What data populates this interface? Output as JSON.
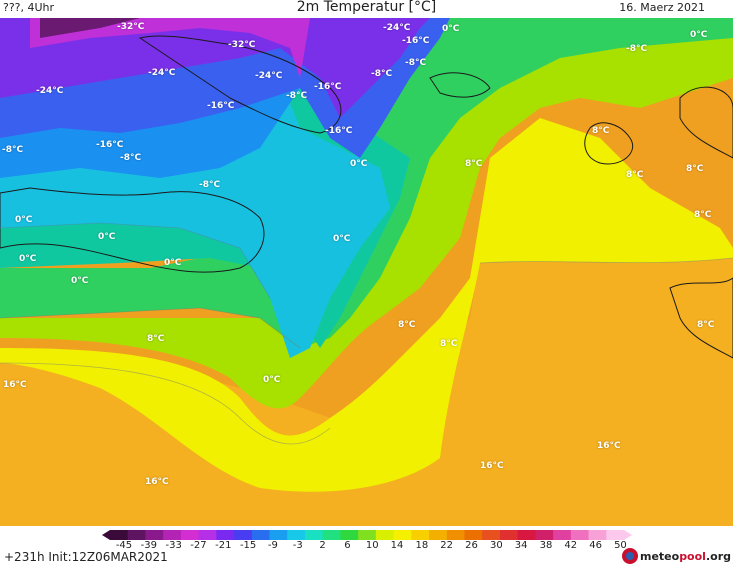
{
  "header": {
    "left": "???, 4Uhr",
    "title": "2m Temperatur [°C]",
    "date": "16. Maerz 2021"
  },
  "map_labels": [
    "-32°C",
    "-32°C",
    "-24°C",
    "-24°C",
    "-24°C",
    "-24°C",
    "-16°C",
    "-16°C",
    "-16°C",
    "-16°C",
    "-16°C",
    "-8°C",
    "-8°C",
    "-8°C",
    "-8°C",
    "-8°C",
    "-8°C",
    "-8°C",
    "0°C",
    "0°C",
    "0°C",
    "0°C",
    "0°C",
    "0°C",
    "0°C",
    "0°C",
    "0°C",
    "0°C",
    "8°C",
    "8°C",
    "8°C",
    "8°C",
    "8°C",
    "8°C",
    "8°C",
    "8°C",
    "8°C",
    "16°C",
    "16°C",
    "16°C",
    "16°C"
  ],
  "colorbar": {
    "ticks": [
      "-45",
      "-39",
      "-33",
      "-27",
      "-21",
      "-15",
      "-9",
      "-3",
      "2",
      "6",
      "10",
      "14",
      "18",
      "22",
      "26",
      "30",
      "34",
      "38",
      "42",
      "46",
      "50"
    ],
    "colors": [
      "#3a0a3a",
      "#5e1460",
      "#8a1a8c",
      "#b424b4",
      "#d22ed2",
      "#b42fe6",
      "#7a2af0",
      "#4a3cf0",
      "#2a6ef0",
      "#1a9ef0",
      "#18c8e8",
      "#18e0c0",
      "#20e080",
      "#30d840",
      "#80e020",
      "#d8f000",
      "#f4f000",
      "#f8d000",
      "#f4b000",
      "#f09000",
      "#ec7000",
      "#e85020",
      "#e03030",
      "#d81840",
      "#d0206a",
      "#e040a0",
      "#f070c0",
      "#f8a0d8",
      "#fcc8ec"
    ]
  },
  "footer": {
    "run_info": "+231h  Init:12Z06MAR2021",
    "logo_text_a": "meteo",
    "logo_text_b": "pool",
    "logo_text_c": ".org"
  }
}
